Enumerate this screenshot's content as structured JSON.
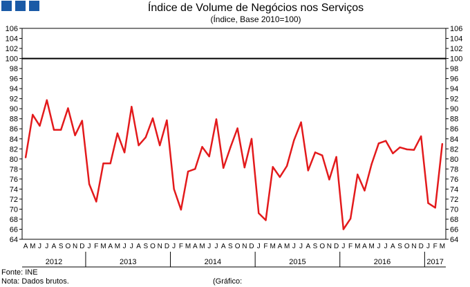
{
  "header": {
    "title": "Índice de Volume de Negócios nos Serviços",
    "subtitle": "(Índice, Base 2010=100)",
    "logo_color": "#1a5aa6"
  },
  "footer": {
    "source": "Fonte: INE",
    "note": "Nota: Dados brutos.",
    "chart_ref": "(Gráfico:"
  },
  "chart_data": {
    "type": "line",
    "title": "Índice de Volume de Negócios nos Serviços",
    "subtitle": "(Índice, Base 2010=100)",
    "ylim": [
      64,
      106
    ],
    "yticks": [
      64,
      66,
      68,
      70,
      72,
      74,
      76,
      78,
      80,
      82,
      84,
      86,
      88,
      90,
      92,
      94,
      96,
      98,
      100,
      102,
      104,
      106
    ],
    "y_axis_both_sides": true,
    "grid": false,
    "reference_line": 100,
    "line_color": "#e31a1c",
    "categories": [
      "A",
      "M",
      "J",
      "J",
      "A",
      "S",
      "O",
      "N",
      "D",
      "J",
      "F",
      "M",
      "A",
      "M",
      "J",
      "J",
      "A",
      "S",
      "O",
      "N",
      "D",
      "J",
      "F",
      "M",
      "A",
      "M",
      "J",
      "J",
      "A",
      "S",
      "O",
      "N",
      "D",
      "J",
      "F",
      "M",
      "A",
      "M",
      "J",
      "J",
      "A",
      "S",
      "O",
      "N",
      "D",
      "J",
      "F",
      "M",
      "A",
      "M",
      "J",
      "J",
      "A",
      "S",
      "O",
      "N",
      "D",
      "J",
      "F",
      "M"
    ],
    "year_groups": [
      {
        "label": "2012",
        "count": 9
      },
      {
        "label": "2013",
        "count": 12
      },
      {
        "label": "2014",
        "count": 12
      },
      {
        "label": "2015",
        "count": 12
      },
      {
        "label": "2016",
        "count": 12
      },
      {
        "label": "2017",
        "count": 3
      }
    ],
    "series": [
      {
        "values": [
          80.3,
          88.8,
          86.6,
          91.7,
          85.8,
          85.8,
          90.1,
          84.7,
          87.6,
          75.0,
          71.5,
          79.1,
          79.1,
          85.1,
          81.3,
          90.4,
          82.7,
          84.3,
          88.1,
          82.7,
          87.7,
          74.0,
          69.9,
          77.5,
          78.0,
          82.4,
          80.5,
          87.9,
          78.2,
          82.3,
          86.1,
          78.3,
          84.0,
          69.2,
          67.8,
          78.4,
          76.4,
          78.6,
          83.7,
          87.3,
          77.7,
          81.3,
          80.7,
          75.9,
          80.4,
          66.0,
          68.1,
          76.9,
          73.7,
          79.0,
          83.1,
          83.6,
          81.1,
          82.3,
          81.9,
          81.8,
          84.5,
          71.2,
          70.3,
          83.0
        ]
      }
    ]
  }
}
